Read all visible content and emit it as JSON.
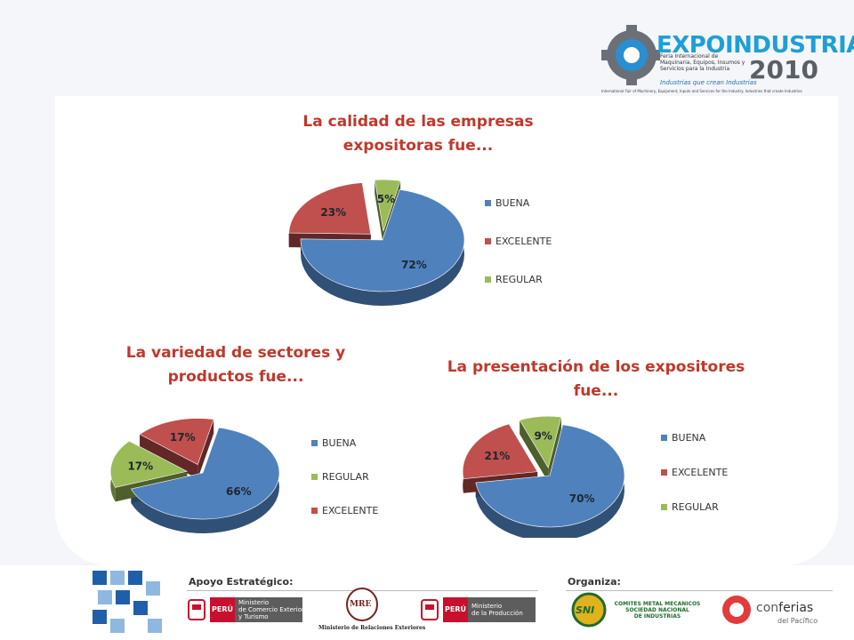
{
  "logo": {
    "brand": "EXPOINDUSTRIA",
    "year": "2010",
    "subtitle": "Feria Internacional de Maquinaria, Equipos, Insumos y Servicios para la Industria",
    "tagline": "Industrias que crean Industrias",
    "footnote": "International Fair of Machinery, Equipment, Inputs and Services for the Industry. Industries that create Industries"
  },
  "colors": {
    "blue": "#4f81bd",
    "red": "#c0504d",
    "green": "#9bbb59",
    "title": "#c0382b"
  },
  "chart_data": [
    {
      "type": "pie",
      "title_line1": "La calidad de las empresas",
      "title_line2": "expositoras fue...",
      "categories": [
        "BUENA",
        "EXCELENTE",
        "REGULAR"
      ],
      "values": [
        72,
        23,
        5
      ],
      "labels": [
        "72%",
        "23%",
        "5%"
      ],
      "legend": "right"
    },
    {
      "type": "pie",
      "title_line1": "La variedad de sectores y",
      "title_line2": "productos fue...",
      "categories": [
        "BUENA",
        "REGULAR",
        "EXCELENTE"
      ],
      "values": [
        66,
        17,
        17
      ],
      "labels": [
        "66%",
        "17%",
        "17%"
      ],
      "legend": "right"
    },
    {
      "type": "pie",
      "title_line1": "La presentación de los expositores",
      "title_line2": "fue...",
      "categories": [
        "BUENA",
        "EXCELENTE",
        "REGULAR"
      ],
      "values": [
        70,
        21,
        9
      ],
      "labels": [
        "70%",
        "21%",
        "9%"
      ],
      "legend": "right"
    }
  ],
  "footer": {
    "support_label": "Apoyo Estratégico:",
    "organizer_label": "Organiza:",
    "peru": "PERÚ",
    "mincetur_line1": "Ministerio",
    "mincetur_line2": "de Comercio Exterior",
    "mincetur_line3": "y Turismo",
    "mre_seal": "MRE",
    "mre_name": "Ministerio de Relaciones Exteriores",
    "produce_line1": "Ministerio",
    "produce_line2": "de la Producción",
    "sni_mark": "SNI",
    "sni_line1": "COMITES METAL MECANICOS",
    "sni_line2": "SOCIEDAD NACIONAL",
    "sni_line3": "DE INDUSTRIAS",
    "conferias_a": "con",
    "conferias_b": "ferias",
    "conferias_c": "del Pacífico"
  }
}
